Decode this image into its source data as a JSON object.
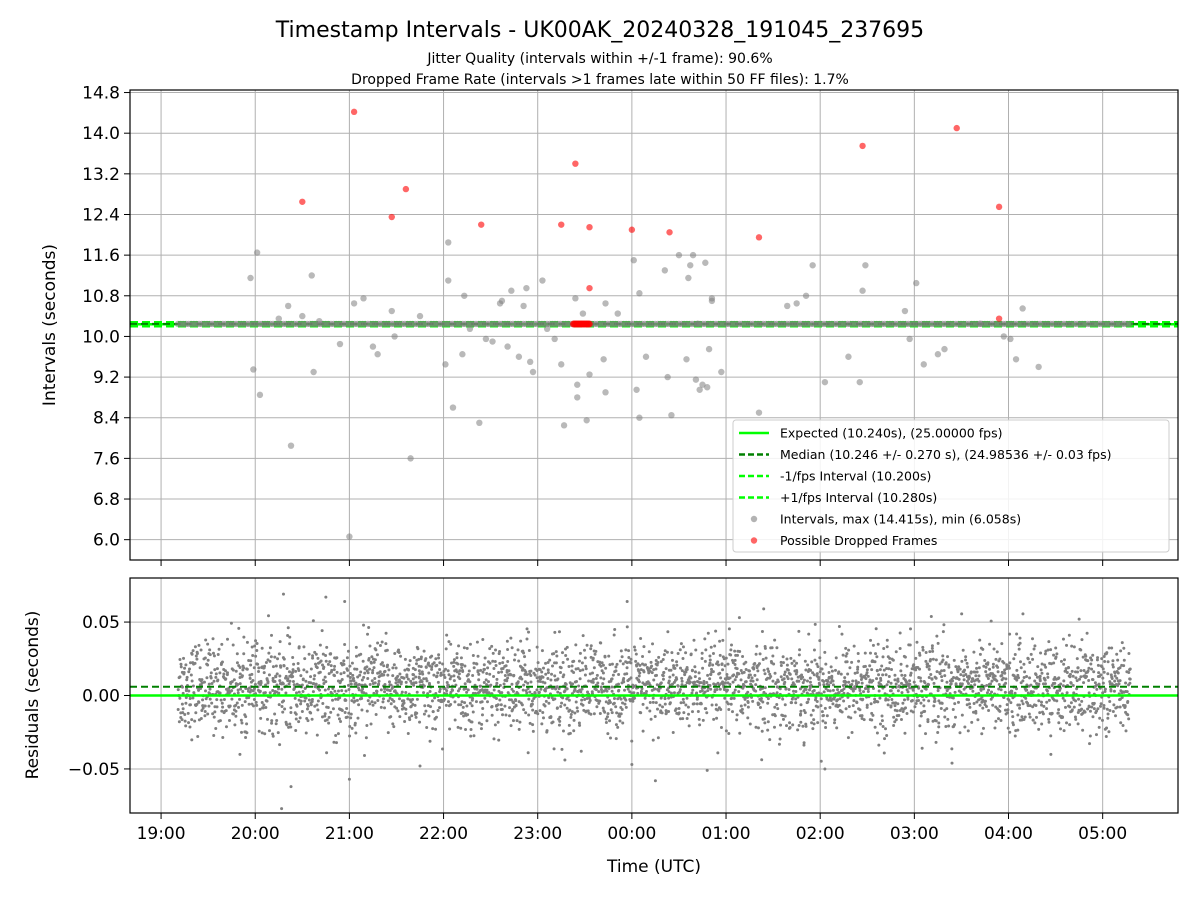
{
  "chart_data": [
    {
      "type": "scatter",
      "title": "Timestamp Intervals - UK00AK_20240328_191045_237695",
      "subtitle_lines": [
        "Jitter Quality (intervals within +/-1 frame): 90.6%",
        "Dropped Frame Rate (intervals >1 frames late within 50 FF files): 1.7%"
      ],
      "ylabel": "Intervals (seconds)",
      "ylim": [
        5.6,
        14.85
      ],
      "yticks": [
        "6.0",
        "6.8",
        "7.6",
        "8.4",
        "9.2",
        "10.0",
        "10.8",
        "11.6",
        "12.4",
        "13.2",
        "14.0",
        "14.8"
      ],
      "x_range_hours": [
        18.67,
        29.8
      ],
      "x_scale": "time (UTC), hours since 00:00 of 2024-03-28",
      "grid": true,
      "legend_position": "lower right",
      "legend": [
        "Expected (10.240s), (25.00000 fps)",
        "Median (10.246 +/- 0.270 s), (24.98536 +/- 0.03 fps)",
        "-1/fps Interval (10.200s)",
        "+1/fps Interval (10.280s)",
        "Intervals, max (14.415s), min (6.058s)",
        "Possible Dropped Frames"
      ],
      "reference_lines": {
        "expected": 10.24,
        "median": 10.246,
        "minus_one_frame": 10.2,
        "plus_one_frame": 10.28
      },
      "baseline_cluster": {
        "y": 10.245,
        "x_start": 19.18,
        "x_end": 29.3
      },
      "series": [
        {
          "name": "Intervals, max (14.415s), min (6.058s)",
          "color": "#808080",
          "x": [
            19.95,
            19.98,
            20.05,
            20.02,
            20.25,
            20.35,
            20.38,
            20.5,
            20.62,
            20.6,
            20.68,
            20.9,
            21.0,
            21.05,
            21.15,
            21.25,
            21.3,
            21.45,
            21.48,
            21.65,
            21.75,
            22.02,
            22.05,
            22.1,
            22.05,
            22.22,
            22.2,
            22.28,
            22.38,
            22.45,
            22.52,
            22.6,
            22.62,
            22.68,
            22.72,
            22.8,
            22.88,
            22.95,
            22.85,
            22.92,
            23.05,
            23.1,
            23.18,
            23.25,
            23.28,
            23.4,
            23.42,
            23.42,
            23.48,
            23.52,
            23.55,
            23.72,
            23.7,
            23.85,
            23.72,
            24.02,
            24.05,
            24.08,
            24.15,
            24.08,
            24.35,
            24.38,
            24.42,
            24.5,
            24.58,
            24.6,
            24.65,
            24.62,
            24.68,
            24.72,
            24.75,
            24.7,
            24.82,
            24.78,
            24.85,
            24.85,
            24.8,
            24.95,
            25.35,
            25.65,
            25.75,
            25.85,
            25.92,
            26.05,
            26.3,
            26.45,
            26.48,
            26.42,
            26.9,
            26.95,
            27.02,
            27.1,
            27.25,
            27.32,
            27.7,
            27.95,
            28.02,
            28.08,
            28.15,
            28.32
          ],
          "y": [
            11.15,
            9.35,
            8.85,
            11.65,
            10.35,
            10.6,
            7.85,
            10.4,
            9.3,
            11.2,
            10.3,
            9.85,
            6.06,
            10.65,
            10.75,
            9.8,
            9.65,
            10.5,
            10.0,
            7.6,
            10.4,
            9.45,
            11.1,
            8.6,
            11.85,
            10.8,
            9.65,
            10.15,
            8.3,
            9.95,
            9.9,
            10.65,
            10.7,
            9.8,
            10.9,
            9.6,
            10.95,
            9.3,
            10.6,
            9.5,
            11.1,
            10.15,
            9.95,
            9.45,
            8.25,
            10.75,
            9.05,
            8.8,
            10.45,
            8.35,
            9.25,
            10.65,
            9.55,
            10.45,
            8.9,
            11.5,
            8.95,
            10.85,
            9.6,
            8.4,
            11.3,
            9.2,
            8.45,
            11.6,
            9.55,
            11.15,
            11.6,
            11.4,
            9.15,
            8.95,
            9.05,
            10.25,
            9.75,
            11.45,
            10.7,
            10.75,
            9.0,
            9.3,
            8.5,
            10.6,
            10.65,
            10.8,
            11.4,
            9.1,
            9.6,
            10.9,
            11.4,
            9.1,
            10.5,
            9.95,
            11.05,
            9.45,
            9.65,
            9.75,
            10.25,
            10.0,
            9.95,
            9.55,
            10.55,
            9.4
          ]
        },
        {
          "name": "Possible Dropped Frames",
          "color": "#ff0000",
          "x": [
            20.5,
            21.05,
            21.45,
            21.6,
            22.4,
            23.25,
            23.4,
            23.55,
            23.55,
            24.0,
            24.4,
            25.35,
            26.45,
            27.45,
            27.9,
            27.9
          ],
          "y": [
            12.65,
            14.42,
            12.35,
            12.9,
            12.2,
            12.2,
            13.4,
            12.15,
            10.95,
            12.1,
            12.05,
            11.95,
            13.75,
            14.1,
            12.55,
            10.35
          ]
        }
      ]
    },
    {
      "type": "scatter",
      "xlabel": "Time (UTC)",
      "ylabel": "Residuals (seconds)",
      "ylim": [
        -0.08,
        0.08
      ],
      "yticks": [
        "−0.05",
        "0.00",
        "0.05"
      ],
      "xticks": [
        "19:00",
        "20:00",
        "21:00",
        "22:00",
        "23:00",
        "00:00",
        "01:00",
        "02:00",
        "03:00",
        "04:00",
        "05:00"
      ],
      "grid": true,
      "reference_lines": {
        "zero": 0.0,
        "median_offset": 0.006
      },
      "series": [
        {
          "name": "Residuals",
          "color": "#808080",
          "x_range": [
            19.18,
            29.3
          ],
          "y_center": 0.006,
          "y_spread": 0.02,
          "count_approx": 3560,
          "outliers": [
            [
              20.28,
              -0.077
            ],
            [
              20.3,
              0.069
            ],
            [
              20.38,
              -0.062
            ],
            [
              20.75,
              0.067
            ],
            [
              20.95,
              0.064
            ],
            [
              21.0,
              -0.057
            ],
            [
              21.75,
              -0.048
            ],
            [
              23.95,
              0.064
            ],
            [
              24.0,
              -0.047
            ],
            [
              24.25,
              -0.058
            ],
            [
              24.8,
              -0.051
            ],
            [
              25.4,
              0.059
            ],
            [
              26.05,
              -0.05
            ],
            [
              27.4,
              -0.046
            ],
            [
              28.75,
              0.052
            ]
          ]
        }
      ]
    }
  ],
  "colors": {
    "expected_line": "#00ff00",
    "median_line": "#008000",
    "fps_bounds": "#00ff00",
    "intervals": "#808080",
    "dropped": "#ff0000",
    "grid": "#b0b0b0"
  }
}
